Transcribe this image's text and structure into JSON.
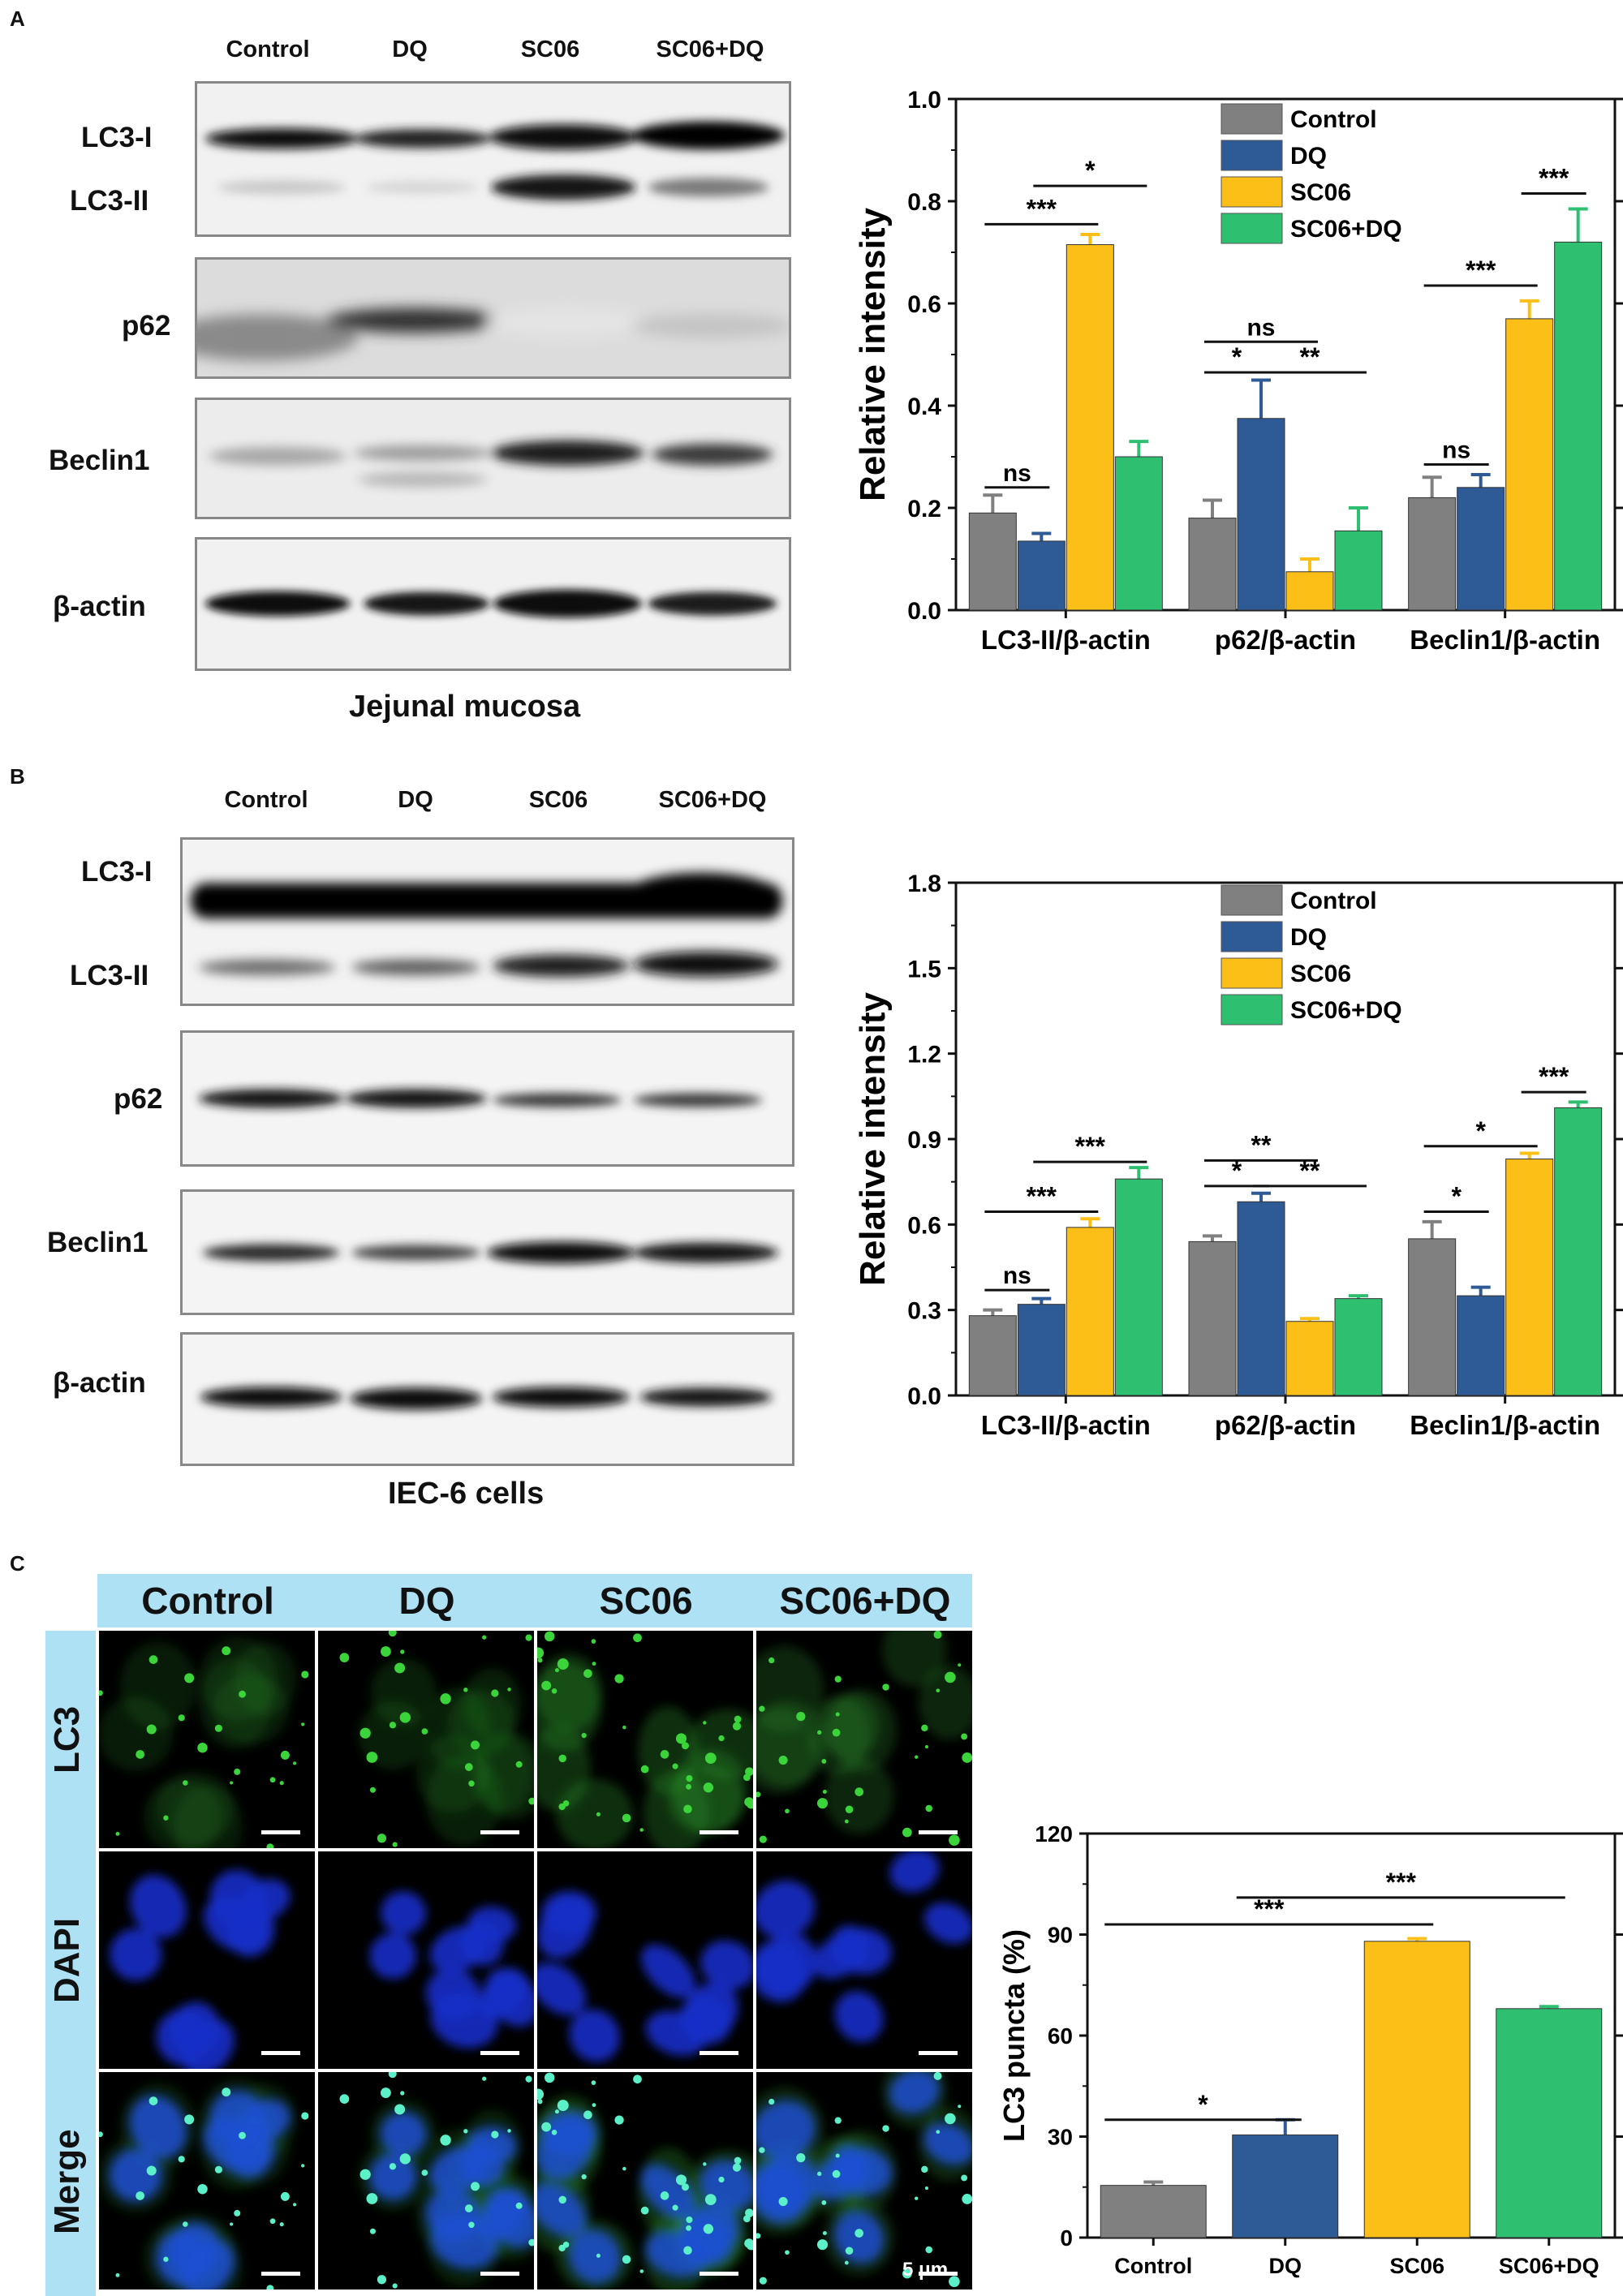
{
  "panels": {
    "A": {
      "letter": "A",
      "lanes": [
        "Control",
        "DQ",
        "SC06",
        "SC06+DQ"
      ],
      "rows": [
        "LC3-I",
        "LC3-II",
        "p62",
        "Beclin1",
        "β-actin"
      ],
      "caption": "Jejunal mucosa"
    },
    "B": {
      "letter": "B",
      "lanes": [
        "Control",
        "DQ",
        "SC06",
        "SC06+DQ"
      ],
      "rows": [
        "LC3-I",
        "LC3-II",
        "p62",
        "Beclin1",
        "β-actin"
      ],
      "caption": "IEC-6 cells"
    },
    "C": {
      "letter": "C",
      "columns": [
        "Control",
        "DQ",
        "SC06",
        "SC06+DQ"
      ],
      "rows": [
        "LC3",
        "DAPI",
        "Merge"
      ],
      "scale_bar": "5 μm"
    }
  },
  "colors": {
    "Control": "#808080",
    "DQ": "#2e5a96",
    "SC06": "#fbbf17",
    "SC06+DQ": "#2fbf71",
    "header_bg": "#aee1f4"
  },
  "chart_data": [
    {
      "id": "chartA",
      "type": "bar",
      "ylabel": "Relative intensity",
      "ylim": [
        0,
        1.0
      ],
      "yticks": [
        "0.0",
        "0.2",
        "0.4",
        "0.6",
        "0.8",
        "1.0"
      ],
      "ytick_values": [
        0,
        0.2,
        0.4,
        0.6,
        0.8,
        1.0
      ],
      "categories": [
        "LC3-II/β-actin",
        "p62/β-actin",
        "Beclin1/β-actin"
      ],
      "legend": [
        "Control",
        "DQ",
        "SC06",
        "SC06+DQ"
      ],
      "legend_position": "top-right",
      "series": [
        {
          "name": "Control",
          "values": [
            0.19,
            0.18,
            0.22
          ],
          "errors": [
            0.035,
            0.035,
            0.04
          ]
        },
        {
          "name": "DQ",
          "values": [
            0.135,
            0.375,
            0.24
          ],
          "errors": [
            0.015,
            0.075,
            0.025
          ]
        },
        {
          "name": "SC06",
          "values": [
            0.715,
            0.075,
            0.57
          ],
          "errors": [
            0.02,
            0.025,
            0.035
          ]
        },
        {
          "name": "SC06+DQ",
          "values": [
            0.3,
            0.155,
            0.72
          ],
          "errors": [
            0.03,
            0.045,
            0.065
          ]
        }
      ],
      "annotations": [
        {
          "text": "ns",
          "group": 0,
          "from": 0,
          "to": 1,
          "y": 0.24
        },
        {
          "text": "***",
          "group": 0,
          "from": 0,
          "to": 2,
          "y": 0.755
        },
        {
          "text": "*",
          "group": 0,
          "from": 1,
          "to": 3,
          "y": 0.83
        },
        {
          "text": "ns",
          "group": 1,
          "from": 0,
          "to": 2,
          "y": 0.525
        },
        {
          "text": "*",
          "group": 1,
          "from": 0,
          "to": 1,
          "y": 0.465
        },
        {
          "text": "**",
          "group": 1,
          "from": 1,
          "to": 3,
          "y": 0.465
        },
        {
          "text": "ns",
          "group": 2,
          "from": 0,
          "to": 1,
          "y": 0.285
        },
        {
          "text": "***",
          "group": 2,
          "from": 0,
          "to": 2,
          "y": 0.635
        },
        {
          "text": "***",
          "group": 2,
          "from": 2,
          "to": 3,
          "y": 0.815
        }
      ]
    },
    {
      "id": "chartB",
      "type": "bar",
      "ylabel": "Relative intensity",
      "ylim": [
        0,
        1.8
      ],
      "yticks": [
        "0.0",
        "0.3",
        "0.6",
        "0.9",
        "1.2",
        "1.5",
        "1.8"
      ],
      "ytick_values": [
        0,
        0.3,
        0.6,
        0.9,
        1.2,
        1.5,
        1.8
      ],
      "categories": [
        "LC3-II/β-actin",
        "p62/β-actin",
        "Beclin1/β-actin"
      ],
      "legend": [
        "Control",
        "DQ",
        "SC06",
        "SC06+DQ"
      ],
      "legend_position": "top-right",
      "series": [
        {
          "name": "Control",
          "values": [
            0.28,
            0.54,
            0.55
          ],
          "errors": [
            0.02,
            0.02,
            0.06
          ]
        },
        {
          "name": "DQ",
          "values": [
            0.32,
            0.68,
            0.35
          ],
          "errors": [
            0.02,
            0.03,
            0.03
          ]
        },
        {
          "name": "SC06",
          "values": [
            0.59,
            0.26,
            0.83
          ],
          "errors": [
            0.03,
            0.01,
            0.02
          ]
        },
        {
          "name": "SC06+DQ",
          "values": [
            0.76,
            0.34,
            1.01
          ],
          "errors": [
            0.04,
            0.01,
            0.02
          ]
        }
      ],
      "annotations": [
        {
          "text": "ns",
          "group": 0,
          "from": 0,
          "to": 1,
          "y": 0.37
        },
        {
          "text": "***",
          "group": 0,
          "from": 0,
          "to": 2,
          "y": 0.645
        },
        {
          "text": "***",
          "group": 0,
          "from": 1,
          "to": 3,
          "y": 0.82
        },
        {
          "text": "**",
          "group": 1,
          "from": 0,
          "to": 2,
          "y": 0.825
        },
        {
          "text": "*",
          "group": 1,
          "from": 0,
          "to": 1,
          "y": 0.735
        },
        {
          "text": "**",
          "group": 1,
          "from": 1,
          "to": 3,
          "y": 0.735
        },
        {
          "text": "*",
          "group": 2,
          "from": 0,
          "to": 1,
          "y": 0.645
        },
        {
          "text": "*",
          "group": 2,
          "from": 0,
          "to": 2,
          "y": 0.875
        },
        {
          "text": "***",
          "group": 2,
          "from": 2,
          "to": 3,
          "y": 1.065
        }
      ]
    },
    {
      "id": "chartC",
      "type": "bar",
      "ylabel": "LC3 puncta (%)",
      "ylim": [
        0,
        120
      ],
      "yticks": [
        "0",
        "30",
        "60",
        "90",
        "120"
      ],
      "ytick_values": [
        0,
        30,
        60,
        90,
        120
      ],
      "categories": [
        "Control",
        "DQ",
        "SC06",
        "SC06+DQ"
      ],
      "values": [
        15.5,
        30.5,
        88,
        68
      ],
      "errors": [
        1,
        4.5,
        0.8,
        0.6
      ],
      "annotations": [
        {
          "text": "*",
          "from": 0,
          "to": 1,
          "y": 35
        },
        {
          "text": "***",
          "from": 0,
          "to": 2,
          "y": 93
        },
        {
          "text": "***",
          "from": 1,
          "to": 3,
          "y": 101
        }
      ]
    }
  ]
}
